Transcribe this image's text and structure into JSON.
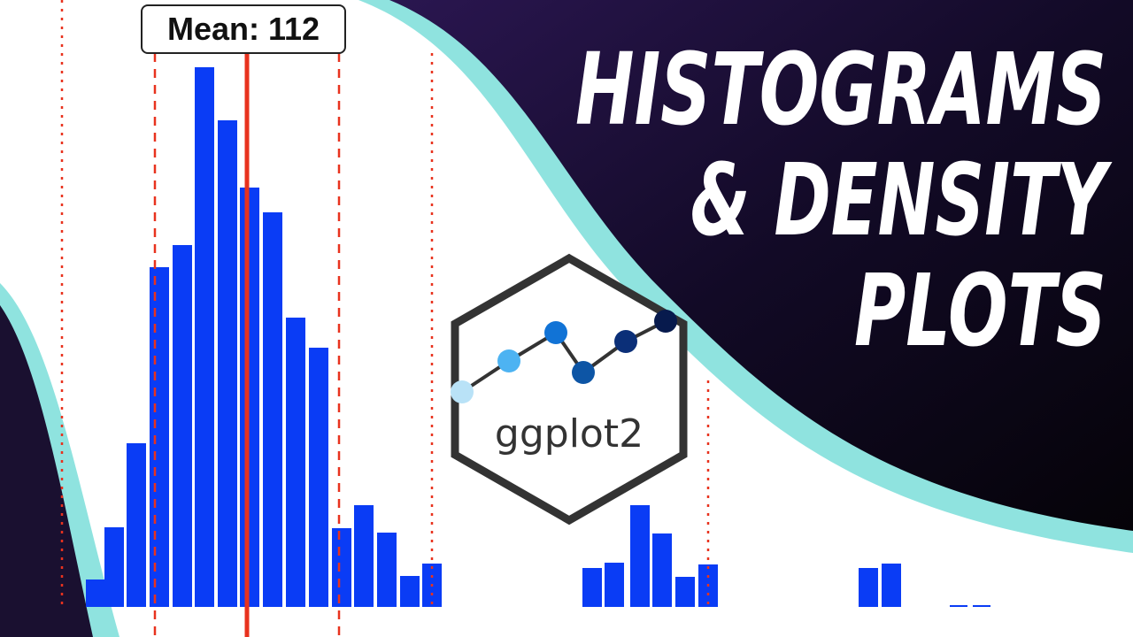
{
  "title": {
    "line1": "HISTOGRAMS",
    "line2": "& DENSITY",
    "line3": "PLOTS"
  },
  "annotation": "Mean: 112",
  "logo": "ggplot2"
}
